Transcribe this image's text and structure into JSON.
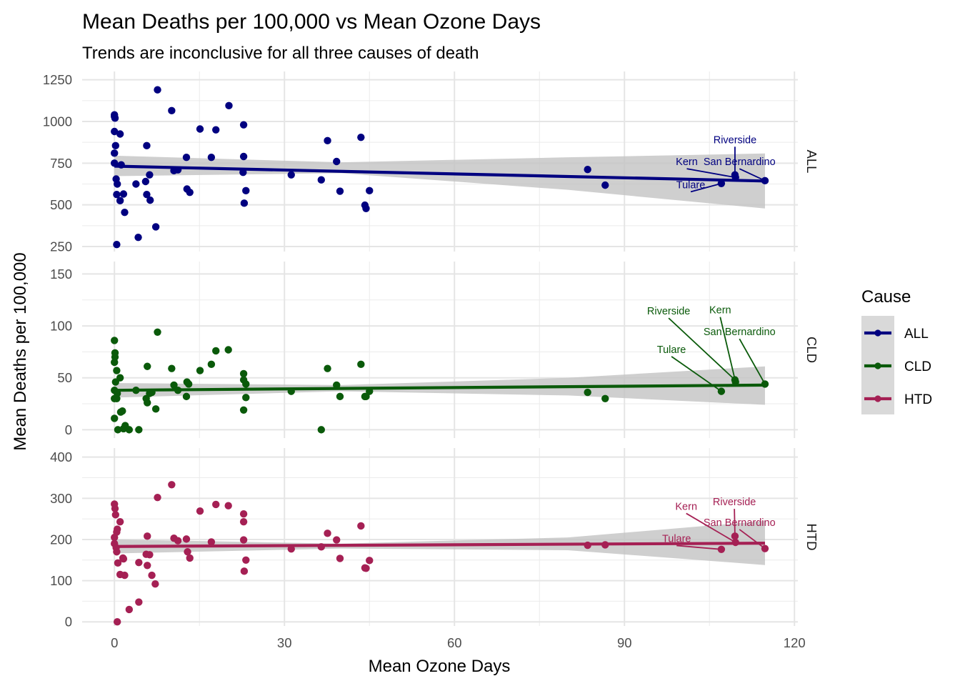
{
  "chart_data": {
    "type": "scatter",
    "title": "Mean Deaths per 100,000 vs Mean Ozone Days",
    "subtitle": "Trends are inconclusive for all three causes of death",
    "xlabel": "Mean Ozone Days",
    "ylabel": "Mean Deaths per 100,000",
    "xlim": [
      -5.7,
      120.6
    ],
    "x_ticks": [
      0,
      30,
      60,
      90,
      120
    ],
    "grid": true,
    "legend": {
      "title": "Cause",
      "position": "right",
      "entries": [
        "ALL",
        "CLD",
        "HTD"
      ]
    },
    "colors": {
      "ALL": "#000080",
      "CLD": "#0a5a0a",
      "HTD": "#a52054",
      "band": "#c8c8c8",
      "grid": "#ebebeb"
    },
    "panels": [
      {
        "label": "ALL",
        "color": "#000080",
        "ylim": [
          220,
          1300
        ],
        "y_ticks": [
          250,
          500,
          750,
          1000,
          1250
        ],
        "trend": {
          "x0": 0,
          "y0": 732,
          "x1": 114.8,
          "y1": 643
        },
        "band": [
          [
            0,
            795,
            672
          ],
          [
            40,
            755,
            690
          ],
          [
            80,
            785,
            590
          ],
          [
            114.8,
            808,
            478
          ]
        ],
        "points": [
          [
            0,
            1040
          ],
          [
            0,
            1030
          ],
          [
            0.1,
            1020
          ],
          [
            0,
            940
          ],
          [
            1,
            925
          ],
          [
            0,
            810
          ],
          [
            0.2,
            855
          ],
          [
            0,
            750
          ],
          [
            0.3,
            655
          ],
          [
            0.5,
            625
          ],
          [
            1.2,
            740
          ],
          [
            0.4,
            562
          ],
          [
            1,
            525
          ],
          [
            1.6,
            565
          ],
          [
            1.8,
            455
          ],
          [
            0.4,
            262
          ],
          [
            3.8,
            625
          ],
          [
            4.2,
            305
          ],
          [
            5.7,
            855
          ],
          [
            5.5,
            640
          ],
          [
            5.7,
            562
          ],
          [
            6.3,
            528
          ],
          [
            6.2,
            680
          ],
          [
            7.3,
            368
          ],
          [
            7.6,
            1190
          ],
          [
            10.1,
            1065
          ],
          [
            10.5,
            705
          ],
          [
            11.2,
            710
          ],
          [
            12.7,
            785
          ],
          [
            12.8,
            595
          ],
          [
            13.3,
            575
          ],
          [
            15.1,
            955
          ],
          [
            17.1,
            785
          ],
          [
            17.9,
            950
          ],
          [
            20.2,
            1095
          ],
          [
            22.8,
            980
          ],
          [
            22.8,
            790
          ],
          [
            22.7,
            695
          ],
          [
            23.2,
            585
          ],
          [
            22.9,
            510
          ],
          [
            31.2,
            680
          ],
          [
            36.5,
            650
          ],
          [
            37.6,
            885
          ],
          [
            39.2,
            760
          ],
          [
            39.8,
            582
          ],
          [
            43.5,
            905
          ],
          [
            44.2,
            498
          ],
          [
            44.4,
            478
          ],
          [
            45,
            585
          ],
          [
            83.5,
            712
          ],
          [
            86.6,
            618
          ],
          [
            107.1,
            628
          ],
          [
            109.5,
            680
          ],
          [
            109.6,
            665
          ],
          [
            114.8,
            645
          ]
        ],
        "annotations": [
          {
            "text": "Riverside",
            "x": 109.5,
            "y": 870,
            "px": 109.5,
            "py": 680
          },
          {
            "text": "Kern",
            "x": 101,
            "y": 738,
            "px": 109.5,
            "py": 665
          },
          {
            "text": "San Bernardino",
            "x": 110.3,
            "y": 738,
            "px": 114.8,
            "py": 645
          },
          {
            "text": "Tulare",
            "x": 101.7,
            "y": 600,
            "px": 107.1,
            "py": 628
          }
        ]
      },
      {
        "label": "CLD",
        "color": "#0a5a0a",
        "ylim": [
          -8,
          162
        ],
        "y_ticks": [
          0,
          50,
          100,
          150
        ],
        "trend": {
          "x0": 0,
          "y0": 38,
          "x1": 114.8,
          "y1": 43
        },
        "band": [
          [
            0,
            45,
            31
          ],
          [
            40,
            43,
            37
          ],
          [
            80,
            50,
            33
          ],
          [
            114.8,
            61,
            24
          ]
        ],
        "points": [
          [
            0,
            86
          ],
          [
            0.1,
            74
          ],
          [
            0.1,
            70
          ],
          [
            0,
            65
          ],
          [
            0.4,
            57
          ],
          [
            1,
            50
          ],
          [
            0.2,
            46
          ],
          [
            0,
            38
          ],
          [
            0.5,
            35
          ],
          [
            0,
            30
          ],
          [
            0.4,
            30
          ],
          [
            1.1,
            17
          ],
          [
            1.4,
            18
          ],
          [
            0,
            11
          ],
          [
            0.6,
            0
          ],
          [
            1.9,
            4
          ],
          [
            1.6,
            1
          ],
          [
            2.6,
            0
          ],
          [
            4.3,
            0
          ],
          [
            3.8,
            38
          ],
          [
            5.6,
            30
          ],
          [
            5.8,
            26
          ],
          [
            5.8,
            61
          ],
          [
            6.2,
            35
          ],
          [
            6.6,
            36
          ],
          [
            7.3,
            20
          ],
          [
            7.6,
            94
          ],
          [
            10.1,
            59
          ],
          [
            10.5,
            43
          ],
          [
            11.2,
            38
          ],
          [
            12.7,
            32
          ],
          [
            12.8,
            46
          ],
          [
            13.1,
            44
          ],
          [
            15.1,
            57
          ],
          [
            17.1,
            63
          ],
          [
            17.9,
            76
          ],
          [
            20.1,
            77
          ],
          [
            22.8,
            54
          ],
          [
            22.8,
            48
          ],
          [
            23.2,
            44
          ],
          [
            23.2,
            31
          ],
          [
            22.8,
            19
          ],
          [
            31.2,
            37
          ],
          [
            36.5,
            0
          ],
          [
            37.6,
            59
          ],
          [
            39.2,
            43
          ],
          [
            39.8,
            32
          ],
          [
            43.5,
            63
          ],
          [
            44.2,
            32
          ],
          [
            44.4,
            32
          ],
          [
            45,
            37
          ],
          [
            83.5,
            36
          ],
          [
            86.6,
            30
          ],
          [
            107.1,
            37
          ],
          [
            109.5,
            48
          ],
          [
            109.6,
            46
          ],
          [
            114.8,
            44
          ]
        ],
        "annotations": [
          {
            "text": "Riverside",
            "x": 97.8,
            "y": 111,
            "px": 109.5,
            "py": 48
          },
          {
            "text": "Kern",
            "x": 106.9,
            "y": 112,
            "px": 109.6,
            "py": 46
          },
          {
            "text": "San Bernardino",
            "x": 110.3,
            "y": 91,
            "px": 114.8,
            "py": 44
          },
          {
            "text": "Tulare",
            "x": 98.3,
            "y": 74,
            "px": 107.1,
            "py": 37
          }
        ]
      },
      {
        "label": "HTD",
        "color": "#a52054",
        "ylim": [
          -10,
          422
        ],
        "y_ticks": [
          0,
          100,
          200,
          300,
          400
        ],
        "trend": {
          "x0": 0,
          "y0": 183,
          "x1": 114.8,
          "y1": 191
        },
        "band": [
          [
            0,
            200,
            166
          ],
          [
            40,
            190,
            178
          ],
          [
            80,
            205,
            174
          ],
          [
            114.8,
            245,
            138
          ]
        ],
        "points": [
          [
            0,
            286
          ],
          [
            0.1,
            275
          ],
          [
            0.2,
            260
          ],
          [
            0,
            205
          ],
          [
            0.4,
            218
          ],
          [
            0.5,
            225
          ],
          [
            1,
            243
          ],
          [
            0,
            190
          ],
          [
            0.3,
            180
          ],
          [
            0.4,
            170
          ],
          [
            0.6,
            143
          ],
          [
            1,
            115
          ],
          [
            1.5,
            155
          ],
          [
            1.6,
            153
          ],
          [
            1.8,
            113
          ],
          [
            0.5,
            0
          ],
          [
            2.6,
            30
          ],
          [
            4.3,
            48
          ],
          [
            4.3,
            144
          ],
          [
            5.6,
            164
          ],
          [
            5.8,
            137
          ],
          [
            5.8,
            208
          ],
          [
            6.2,
            163
          ],
          [
            6.6,
            113
          ],
          [
            7.2,
            92
          ],
          [
            7.6,
            302
          ],
          [
            10.1,
            333
          ],
          [
            10.5,
            203
          ],
          [
            11.2,
            197
          ],
          [
            12.7,
            201
          ],
          [
            12.9,
            170
          ],
          [
            13.3,
            155
          ],
          [
            15.1,
            269
          ],
          [
            17.1,
            194
          ],
          [
            17.9,
            285
          ],
          [
            20.1,
            282
          ],
          [
            22.8,
            262
          ],
          [
            22.8,
            243
          ],
          [
            22.8,
            199
          ],
          [
            22.9,
            123
          ],
          [
            23.2,
            150
          ],
          [
            31.2,
            177
          ],
          [
            36.5,
            182
          ],
          [
            37.6,
            215
          ],
          [
            39.2,
            199
          ],
          [
            39.8,
            154
          ],
          [
            43.5,
            233
          ],
          [
            44.2,
            131
          ],
          [
            44.4,
            130
          ],
          [
            45,
            149
          ],
          [
            83.5,
            186
          ],
          [
            86.6,
            187
          ],
          [
            107.1,
            176
          ],
          [
            109.5,
            208
          ],
          [
            109.6,
            193
          ],
          [
            114.8,
            178
          ]
        ],
        "annotations": [
          {
            "text": "Riverside",
            "x": 109.4,
            "y": 283,
            "px": 109.5,
            "py": 208
          },
          {
            "text": "Kern",
            "x": 100.9,
            "y": 272,
            "px": 109.6,
            "py": 193
          },
          {
            "text": "San Bernardino",
            "x": 110.3,
            "y": 233,
            "px": 114.8,
            "py": 178
          },
          {
            "text": "Tulare",
            "x": 99.2,
            "y": 194,
            "px": 107.1,
            "py": 176
          }
        ]
      }
    ]
  }
}
